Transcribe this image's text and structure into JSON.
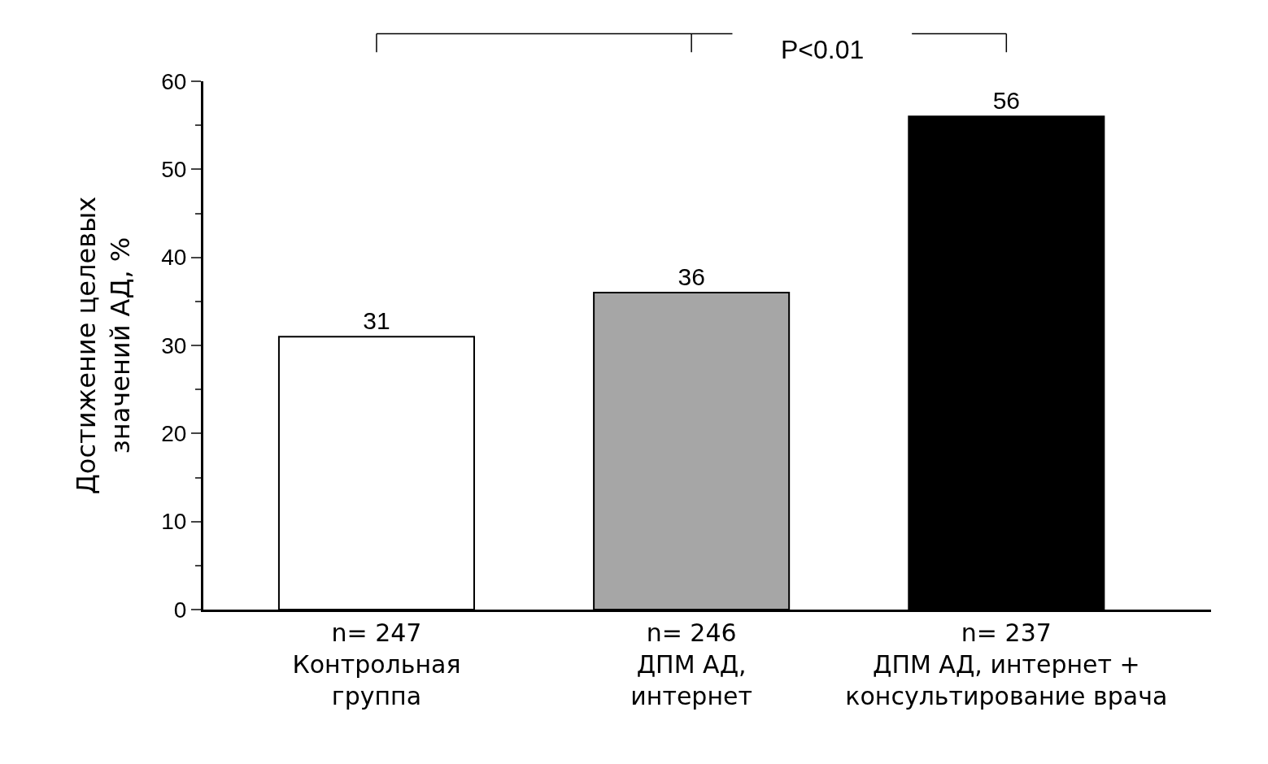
{
  "chart_data": {
    "type": "bar",
    "categories": [
      "n= 247\nКонтрольная\nгруппа",
      "n= 246\nДПМ АД,\nинтернет",
      "n= 237\nДПМ АД, интернет +\nконсультирование врача"
    ],
    "values": [
      31,
      36,
      56
    ],
    "colors": [
      "#ffffff",
      "#a6a6a6",
      "#000000"
    ],
    "ylabel": "Достижение целевых\nзначений АД, %",
    "ylim": [
      0,
      60
    ],
    "yticks": [
      0,
      10,
      20,
      30,
      40,
      50,
      60
    ],
    "annotations": [
      "P<0.01"
    ],
    "data_labels": true
  }
}
